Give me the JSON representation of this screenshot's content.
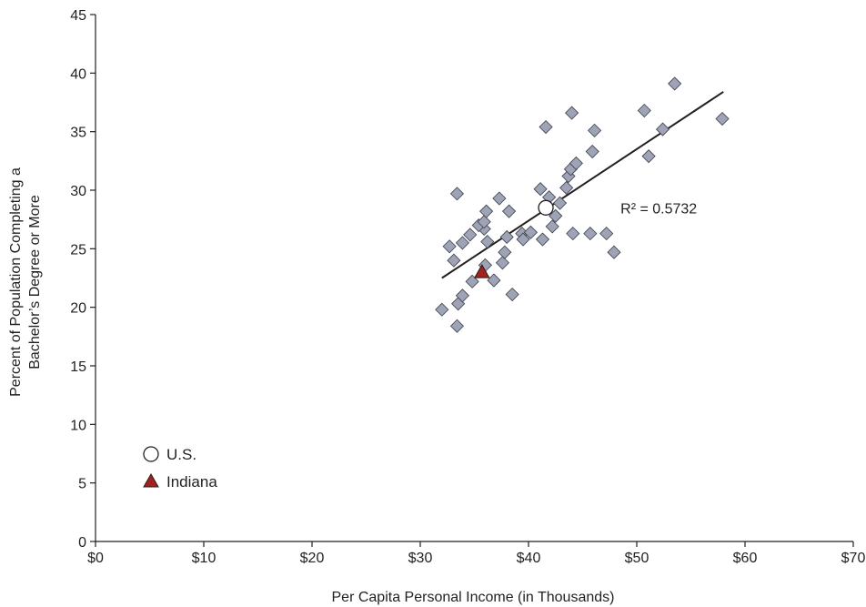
{
  "chart_data": {
    "type": "scatter",
    "xlabel": "Per Capita Personal Income (in Thousands)",
    "ylabel_lines": [
      "Percent of Population Completing a",
      "Bachelor’s Degree or More"
    ],
    "xlim": [
      0,
      70
    ],
    "ylim": [
      0,
      45
    ],
    "x_ticks": [
      0,
      10,
      20,
      30,
      40,
      50,
      60,
      70
    ],
    "x_tick_labels": [
      "$0",
      "$10",
      "$20",
      "$30",
      "$40",
      "$50",
      "$60",
      "$70"
    ],
    "y_ticks": [
      0,
      5,
      10,
      15,
      20,
      25,
      30,
      35,
      40,
      45
    ],
    "y_tick_labels": [
      "0",
      "5",
      "10",
      "15",
      "20",
      "25",
      "30",
      "35",
      "40",
      "45"
    ],
    "grid": false,
    "legend_position": "bottom-left",
    "colors": {
      "states": "#9ea3b6",
      "states_stroke": "#3a3d4a",
      "indiana": "#a3201d",
      "trendline": "#231f20"
    },
    "series": [
      {
        "name": "",
        "marker": "diamond-icon",
        "points": [
          [
            32.0,
            19.8
          ],
          [
            33.4,
            18.4
          ],
          [
            33.5,
            20.3
          ],
          [
            33.9,
            21.0
          ],
          [
            34.8,
            22.2
          ],
          [
            36.0,
            23.6
          ],
          [
            36.8,
            22.3
          ],
          [
            37.6,
            23.8
          ],
          [
            37.8,
            24.7
          ],
          [
            36.2,
            25.6
          ],
          [
            35.9,
            26.7
          ],
          [
            34.6,
            26.2
          ],
          [
            33.1,
            24.0
          ],
          [
            32.7,
            25.2
          ],
          [
            33.9,
            25.5
          ],
          [
            35.4,
            27.0
          ],
          [
            35.9,
            27.3
          ],
          [
            36.1,
            28.2
          ],
          [
            37.3,
            29.3
          ],
          [
            38.2,
            28.2
          ],
          [
            33.4,
            29.7
          ],
          [
            38.0,
            26.0
          ],
          [
            38.5,
            21.1
          ],
          [
            39.4,
            26.3
          ],
          [
            39.5,
            25.8
          ],
          [
            40.2,
            26.4
          ],
          [
            41.1,
            30.1
          ],
          [
            41.3,
            25.8
          ],
          [
            41.9,
            29.4
          ],
          [
            42.2,
            26.9
          ],
          [
            42.5,
            27.8
          ],
          [
            42.9,
            28.9
          ],
          [
            43.5,
            30.2
          ],
          [
            43.7,
            31.2
          ],
          [
            43.9,
            31.8
          ],
          [
            44.4,
            32.3
          ],
          [
            44.1,
            26.3
          ],
          [
            45.7,
            26.3
          ],
          [
            45.9,
            33.3
          ],
          [
            46.1,
            35.1
          ],
          [
            47.2,
            26.3
          ],
          [
            47.9,
            24.7
          ],
          [
            41.6,
            35.4
          ],
          [
            44.0,
            36.6
          ],
          [
            50.7,
            36.8
          ],
          [
            51.1,
            32.9
          ],
          [
            52.4,
            35.2
          ],
          [
            53.5,
            39.1
          ],
          [
            57.9,
            36.1
          ]
        ]
      },
      {
        "name": "U.S.",
        "marker": "circle-icon",
        "points": [
          [
            41.6,
            28.5
          ]
        ]
      },
      {
        "name": "Indiana",
        "marker": "triangle-icon",
        "points": [
          [
            35.7,
            23.0
          ]
        ]
      }
    ],
    "trendline": {
      "from": [
        32.0,
        22.5
      ],
      "to": [
        58.0,
        38.4
      ]
    },
    "annotations": [
      {
        "text": "R² = 0.5732",
        "x": 48.5,
        "y": 28.5
      }
    ]
  }
}
